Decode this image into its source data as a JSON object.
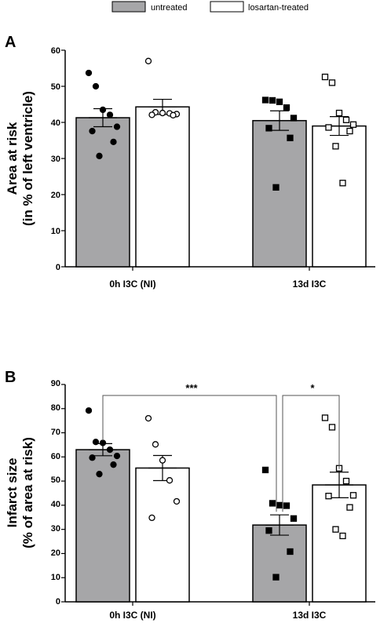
{
  "legend": {
    "untreated": "untreated",
    "treated": "losartan-treated"
  },
  "colors": {
    "untreated_fill": "#a6a6a8",
    "treated_fill": "#ffffff",
    "stroke": "#000000"
  },
  "chart_data": [
    {
      "type": "bar",
      "panel": "A",
      "ylabel": [
        "Area at risk",
        "(in % of left ventricle)"
      ],
      "ylim": [
        0,
        60
      ],
      "yticks": [
        0,
        10,
        20,
        30,
        40,
        50,
        60
      ],
      "categories": [
        "0h I3C (NI)",
        "13d I3C"
      ],
      "series": [
        {
          "name": "untreated",
          "values": [
            41.3,
            40.5
          ],
          "sem": [
            2.5,
            2.7
          ],
          "points": [
            [
              53.7,
              50.0,
              43.5,
              42.1,
              38.8,
              37.6,
              34.6,
              30.7
            ],
            [
              46.2,
              46.1,
              45.7,
              44.1,
              41.2,
              38.4,
              35.7,
              22.0
            ]
          ]
        },
        {
          "name": "losartan-treated",
          "values": [
            44.3,
            39.0
          ],
          "sem": [
            2.1,
            2.6
          ],
          "points": [
            [
              57.0,
              42.8,
              42.6,
              42.5,
              42.3,
              42.1,
              42.0
            ],
            [
              52.6,
              51.0,
              42.6,
              40.7,
              39.4,
              38.6,
              37.6,
              33.4,
              23.2
            ]
          ]
        }
      ]
    },
    {
      "type": "bar",
      "panel": "B",
      "ylabel": [
        "Infarct size",
        "(% of area at risk)"
      ],
      "ylim": [
        0,
        90
      ],
      "yticks": [
        0,
        10,
        20,
        30,
        40,
        50,
        60,
        70,
        80,
        90
      ],
      "categories": [
        "0h I3C (NI)",
        "13d I3C"
      ],
      "series": [
        {
          "name": "untreated",
          "values": [
            63.0,
            31.8
          ],
          "sem": [
            2.5,
            4.2
          ],
          "points": [
            [
              79.2,
              66.2,
              65.8,
              63.0,
              60.4,
              59.7,
              56.8,
              52.9
            ],
            [
              54.6,
              40.8,
              40.0,
              39.8,
              34.5,
              29.5,
              20.8,
              10.2
            ]
          ]
        },
        {
          "name": "losartan-treated",
          "values": [
            55.4,
            48.4
          ],
          "sem": [
            5.2,
            5.3
          ],
          "points": [
            [
              76.0,
              65.2,
              58.6,
              50.3,
              41.6,
              34.8
            ],
            [
              76.2,
              72.3,
              55.3,
              50.0,
              44.1,
              43.8,
              39.1,
              30.0,
              27.3
            ]
          ]
        }
      ],
      "annotations": [
        {
          "label": "***",
          "from": [
            0,
            0
          ],
          "to": [
            1,
            0
          ]
        },
        {
          "label": "*",
          "from": [
            1,
            0
          ],
          "to": [
            1,
            1
          ]
        }
      ]
    }
  ]
}
